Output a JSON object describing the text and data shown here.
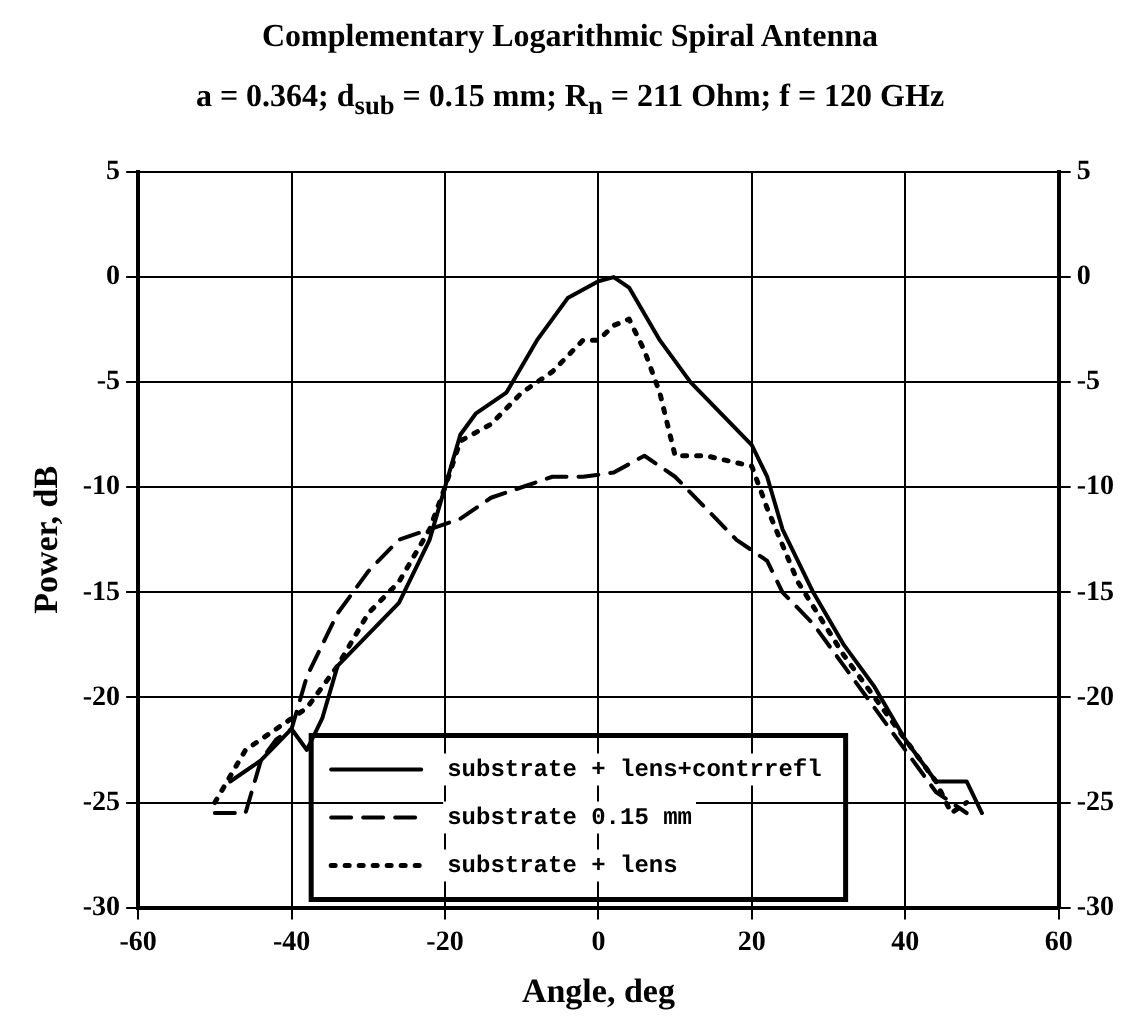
{
  "chart_data": {
    "type": "line",
    "title": "Complementary Logarithmic Spiral Antenna",
    "subtitle": "a = 0.364; d$_{sub}$ = 0.15 mm; R$_{n}$ = 211 Ohm; f = 120 GHz",
    "xlabel": "Angle, deg",
    "ylabel": "Power, dB",
    "xlim": [
      -60,
      60
    ],
    "xticks": [
      -60,
      -40,
      -20,
      0,
      20,
      40,
      60
    ],
    "ylim": [
      -30,
      5
    ],
    "yticks": [
      -30,
      -25,
      -20,
      -15,
      -10,
      -5,
      0,
      5
    ],
    "y2lim": [
      -30,
      5
    ],
    "y2ticks": [
      -30,
      -25,
      -20,
      -15,
      -10,
      -5,
      0,
      5
    ],
    "grid": true,
    "legend": "bottom",
    "marker": "none",
    "series": [
      {
        "name": "substrate + lens+contrrefl",
        "color": "#000000",
        "line_style": "solid",
        "x": [
          -48,
          -44,
          -40,
          -38,
          -36,
          -34,
          -30,
          -26,
          -22,
          -20,
          -18,
          -16,
          -12,
          -8,
          -4,
          0,
          2,
          4,
          8,
          12,
          16,
          20,
          22,
          24,
          28,
          32,
          36,
          40,
          44,
          48,
          50
        ],
        "values": [
          -24,
          -23,
          -21.5,
          -22.5,
          -21,
          -18.5,
          -17,
          -15.5,
          -12.5,
          -10,
          -7.5,
          -6.5,
          -5.5,
          -3,
          -1,
          -0.2,
          0,
          -0.5,
          -3,
          -5,
          -6.5,
          -8,
          -9.5,
          -12,
          -15,
          -17.5,
          -19.5,
          -22,
          -24,
          -24,
          -25.5
        ]
      },
      {
        "name": "substrate 0.15 mm",
        "color": "#000000",
        "line_style": "dashed",
        "x": [
          -50,
          -46,
          -44,
          -42,
          -40,
          -38,
          -34,
          -30,
          -26,
          -22,
          -18,
          -14,
          -10,
          -6,
          -2,
          2,
          6,
          10,
          14,
          18,
          22,
          24,
          28,
          32,
          36,
          40,
          44,
          48
        ],
        "values": [
          -25.5,
          -25.5,
          -23,
          -22,
          -21.5,
          -19,
          -16,
          -14,
          -12.5,
          -12,
          -11.5,
          -10.5,
          -10,
          -9.5,
          -9.5,
          -9.3,
          -8.5,
          -9.5,
          -11,
          -12.5,
          -13.5,
          -15,
          -16.5,
          -18.5,
          -20.5,
          -22.5,
          -24.5,
          -25.5
        ]
      },
      {
        "name": "substrate + lens",
        "color": "#000000",
        "line_style": "dotted",
        "x": [
          -50,
          -46,
          -42,
          -38,
          -34,
          -30,
          -26,
          -22,
          -20,
          -18,
          -14,
          -10,
          -6,
          -2,
          0,
          2,
          4,
          6,
          8,
          10,
          14,
          20,
          22,
          26,
          32,
          36,
          40,
          44,
          46,
          48
        ],
        "values": [
          -25,
          -22.5,
          -21.5,
          -20.5,
          -18.5,
          -16,
          -14.5,
          -12,
          -10,
          -7.8,
          -7,
          -5.5,
          -4.5,
          -3,
          -3,
          -2.3,
          -2,
          -3.5,
          -5.5,
          -8.5,
          -8.5,
          -9,
          -11,
          -14.5,
          -18,
          -20,
          -22,
          -24,
          -25.5,
          -25
        ]
      }
    ]
  }
}
